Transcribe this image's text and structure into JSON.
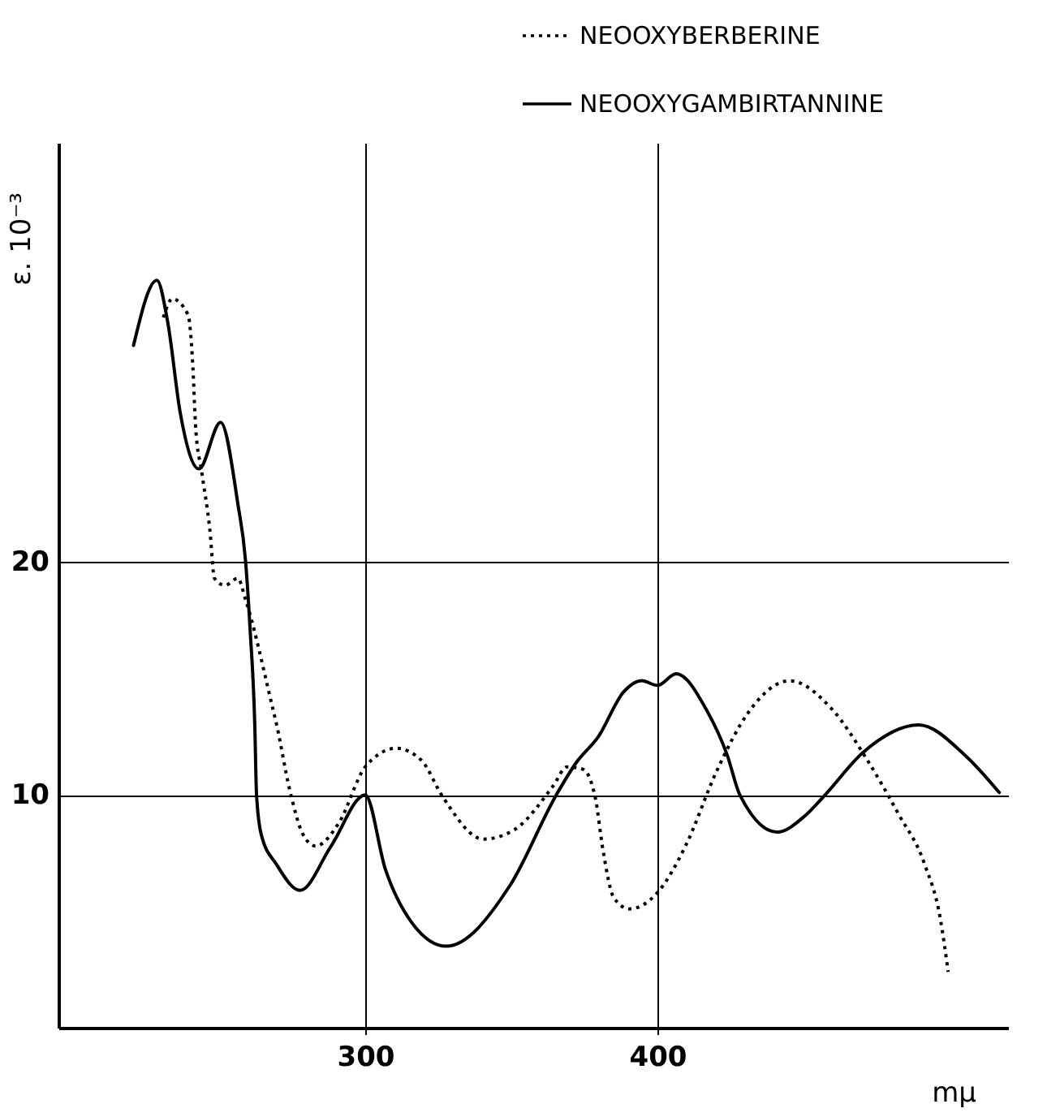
{
  "chart_data": {
    "type": "line",
    "xlabel": "mμ",
    "ylabel": "ε. 10⁻³",
    "xlim": [
      195,
      520
    ],
    "ylim": [
      0,
      38
    ],
    "xticks": [
      300,
      400
    ],
    "yticks": [
      10,
      20
    ],
    "grid": true,
    "legend": "top right",
    "marker": "none",
    "series": [
      {
        "name": "NEOOXYBERBERINE",
        "color": "#000000",
        "line_style": "dotted",
        "x": [
          230.9,
          234,
          239.4,
          241,
          242,
          244,
          246.8,
          248.4,
          252,
          256.4,
          259,
          268,
          269.7,
          274,
          278.7,
          283,
          291,
          300,
          310.6,
          319.1,
          326.6,
          340.4,
          351,
          364.4,
          369,
          374.5,
          378.7,
          381.4,
          385,
          390.4,
          400,
          409.6,
          420.2,
          430.9,
          445.2,
          459.6,
          471.8,
          482.4,
          491.5,
          496.8,
          499.5
        ],
        "values": [
          30.5,
          31.3,
          30.6,
          28.4,
          25.7,
          23.9,
          21.4,
          19.3,
          19.0,
          19.3,
          18.4,
          13.9,
          13.0,
          10.3,
          8.3,
          7.8,
          8.8,
          11.2,
          12.0,
          11.5,
          9.9,
          8.1,
          8.5,
          10.4,
          11.2,
          11.1,
          9.9,
          7.6,
          5.6,
          5.1,
          5.8,
          7.8,
          11.0,
          13.5,
          14.9,
          13.7,
          11.5,
          9.2,
          7.0,
          4.7,
          2.4
        ]
      },
      {
        "name": "NEOOXYGAMBIRTANNINE",
        "color": "#000000",
        "line_style": "solid",
        "x": [
          220.7,
          228.7,
          232.4,
          236.7,
          243.1,
          250.5,
          256.4,
          259.0,
          260.6,
          262.2,
          262.8,
          264.4,
          269.7,
          277.7,
          288.3,
          300,
          306.9,
          316,
          327.7,
          349.5,
          365.4,
          372.3,
          379.8,
          388.3,
          394.7,
          400,
          406.4,
          417,
          423.9,
          428.2,
          441,
          450.5,
          457.4,
          470.2,
          489.4,
          505.3,
          517
        ],
        "values": [
          29.3,
          32.1,
          30.3,
          26.4,
          24.0,
          26.0,
          22.5,
          20.1,
          17.1,
          13.0,
          10.0,
          8.3,
          7.0,
          5.9,
          7.8,
          10.0,
          6.8,
          4.5,
          3.5,
          6.1,
          10.0,
          11.4,
          12.5,
          14.4,
          14.9,
          14.7,
          15.2,
          13.6,
          11.7,
          10.0,
          8.4,
          9.1,
          10.0,
          11.8,
          13.0,
          11.7,
          10.1
        ]
      }
    ]
  }
}
